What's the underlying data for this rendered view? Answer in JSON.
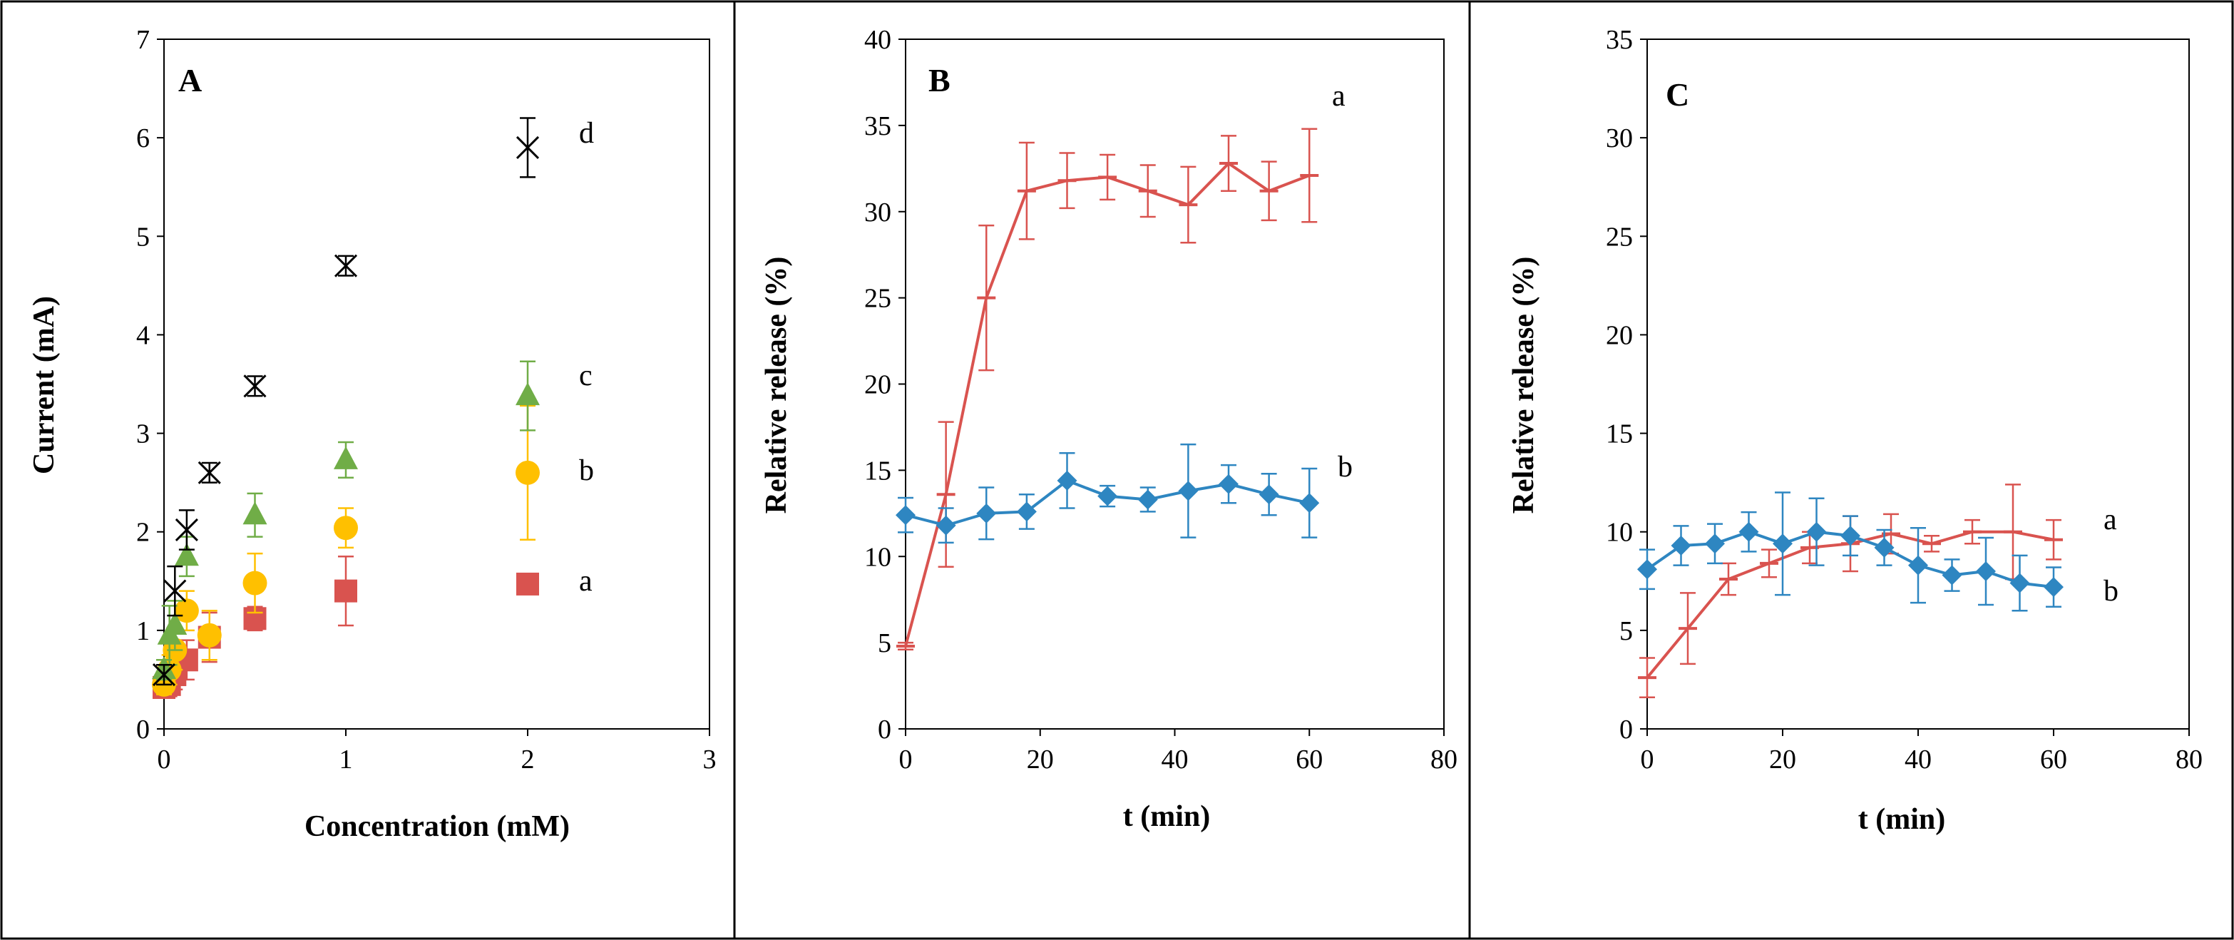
{
  "colors": {
    "red": "#d9534f",
    "orange": "#ffc000",
    "green": "#70ad47",
    "blue": "#2e86c1",
    "black": "#000000"
  },
  "chart_data": [
    {
      "type": "scatter",
      "panel": "A",
      "xlabel": "Concentration (mM)",
      "ylabel": "Current (mA)",
      "xlim": [
        0,
        3
      ],
      "ylim": [
        0,
        7
      ],
      "xticks": [
        0,
        1,
        2,
        3
      ],
      "yticks": [
        0,
        1,
        2,
        3,
        4,
        5,
        6,
        7
      ],
      "grid": false,
      "series": [
        {
          "label": "a",
          "color": "#d9534f",
          "marker": "square",
          "x": [
            0.0,
            0.03,
            0.06,
            0.125,
            0.25,
            0.5,
            1.0,
            2.0
          ],
          "y": [
            0.42,
            0.45,
            0.55,
            0.7,
            0.93,
            1.12,
            1.4,
            1.47
          ],
          "err": [
            0.1,
            0.12,
            0.15,
            0.2,
            0.25,
            0.12,
            0.35,
            0.1
          ]
        },
        {
          "label": "b",
          "color": "#ffc000",
          "marker": "circle",
          "x": [
            0.0,
            0.03,
            0.06,
            0.125,
            0.25,
            0.5,
            1.0,
            2.0
          ],
          "y": [
            0.45,
            0.6,
            0.8,
            1.2,
            0.95,
            1.48,
            2.04,
            2.6
          ],
          "err": [
            0.1,
            0.15,
            0.2,
            0.2,
            0.25,
            0.3,
            0.2,
            0.68
          ]
        },
        {
          "label": "c",
          "color": "#70ad47",
          "marker": "triangle",
          "x": [
            0.0,
            0.03,
            0.06,
            0.125,
            0.5,
            1.0,
            2.0
          ],
          "y": [
            0.6,
            0.95,
            1.05,
            1.75,
            2.17,
            2.73,
            3.38
          ],
          "err": [
            0.1,
            0.3,
            0.25,
            0.2,
            0.22,
            0.18,
            0.35
          ]
        },
        {
          "label": "d",
          "color": "#000000",
          "marker": "x",
          "x": [
            0.0,
            0.06,
            0.125,
            0.25,
            0.5,
            1.0,
            2.0
          ],
          "y": [
            0.55,
            1.4,
            2.02,
            2.6,
            3.48,
            4.7,
            5.9
          ],
          "err": [
            0.1,
            0.25,
            0.2,
            0.1,
            0.1,
            0.1,
            0.3
          ]
        }
      ]
    },
    {
      "type": "line",
      "panel": "B",
      "xlabel": "t (min)",
      "ylabel": "Relative release (%)",
      "xlim": [
        0,
        80
      ],
      "ylim": [
        0,
        40
      ],
      "xticks": [
        0,
        20,
        40,
        60,
        80
      ],
      "yticks": [
        0,
        5,
        10,
        15,
        20,
        25,
        30,
        35,
        40
      ],
      "grid": false,
      "series": [
        {
          "label": "a",
          "color": "#d9534f",
          "marker": "dash",
          "x": [
            0,
            6,
            12,
            18,
            24,
            30,
            36,
            42,
            48,
            54,
            60
          ],
          "y": [
            4.8,
            13.6,
            25.0,
            31.2,
            31.8,
            32.0,
            31.2,
            30.4,
            32.8,
            31.2,
            32.1
          ],
          "err": [
            0.2,
            4.2,
            4.2,
            2.8,
            1.6,
            1.3,
            1.5,
            2.2,
            1.6,
            1.7,
            2.7
          ]
        },
        {
          "label": "b",
          "color": "#2e86c1",
          "marker": "diamond",
          "x": [
            0,
            6,
            12,
            18,
            24,
            30,
            36,
            42,
            48,
            54,
            60
          ],
          "y": [
            12.4,
            11.8,
            12.5,
            12.6,
            14.4,
            13.5,
            13.3,
            13.8,
            14.2,
            13.6,
            13.1
          ],
          "err": [
            1.0,
            1.0,
            1.5,
            1.0,
            1.6,
            0.6,
            0.7,
            2.7,
            1.1,
            1.2,
            2.0
          ]
        }
      ],
      "labels": {
        "a": "a",
        "b": "b"
      }
    },
    {
      "type": "line",
      "panel": "C",
      "xlabel": "t (min)",
      "ylabel": "Relative release (%)",
      "xlim": [
        0,
        80
      ],
      "ylim": [
        0,
        35
      ],
      "xticks": [
        0,
        20,
        40,
        60,
        80
      ],
      "yticks": [
        0,
        5,
        10,
        15,
        20,
        25,
        30,
        35
      ],
      "grid": false,
      "series": [
        {
          "label": "a",
          "color": "#d9534f",
          "marker": "dash",
          "x": [
            0,
            6,
            12,
            18,
            24,
            30,
            36,
            42,
            48,
            54,
            60
          ],
          "y": [
            2.6,
            5.1,
            7.6,
            8.4,
            9.2,
            9.4,
            9.9,
            9.4,
            10.0,
            10.0,
            9.6
          ],
          "err": [
            1.0,
            1.8,
            0.8,
            0.7,
            0.8,
            1.4,
            1.0,
            0.4,
            0.6,
            2.4,
            1.0
          ]
        },
        {
          "label": "b",
          "color": "#2e86c1",
          "marker": "diamond",
          "x": [
            0,
            5,
            10,
            15,
            20,
            25,
            30,
            35,
            40,
            45,
            50,
            55,
            60
          ],
          "y": [
            8.1,
            9.3,
            9.4,
            10.0,
            9.4,
            10.0,
            9.8,
            9.2,
            8.3,
            7.8,
            8.0,
            7.4,
            7.2
          ],
          "err": [
            1.0,
            1.0,
            1.0,
            1.0,
            2.6,
            1.7,
            1.0,
            0.9,
            1.9,
            0.8,
            1.7,
            1.4,
            1.0
          ]
        }
      ],
      "labels": {
        "a": "a",
        "b": "b"
      }
    }
  ]
}
